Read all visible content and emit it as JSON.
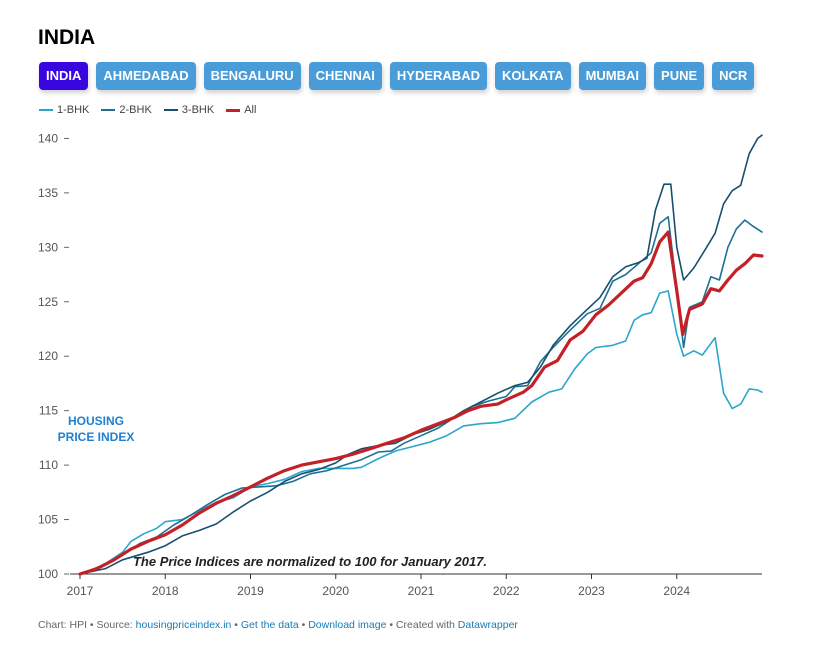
{
  "title": "INDIA",
  "tabs": [
    {
      "label": "INDIA",
      "active": true
    },
    {
      "label": "AHMEDABAD",
      "active": false
    },
    {
      "label": "BENGALURU",
      "active": false
    },
    {
      "label": "CHENNAI",
      "active": false
    },
    {
      "label": "HYDERABAD",
      "active": false
    },
    {
      "label": "KOLKATA",
      "active": false
    },
    {
      "label": "MUMBAI",
      "active": false
    },
    {
      "label": "PUNE",
      "active": false
    },
    {
      "label": "NCR",
      "active": false
    }
  ],
  "colors": {
    "1-BHK": "#2ba6cc",
    "2-BHK": "#1c7193",
    "3-BHK": "#17506e",
    "All": "#c32127",
    "tab_bg": "#4a9cd9",
    "tab_active": "#3a06e0",
    "watermark": "#1f7fd1"
  },
  "watermark": [
    "HOUSING",
    "PRICE INDEX"
  ],
  "chart_data": {
    "type": "line",
    "x_ticks": [
      "2017",
      "2018",
      "2019",
      "2020",
      "2021",
      "2022",
      "2023",
      "2024"
    ],
    "y_ticks": [
      100,
      105,
      110,
      115,
      120,
      125,
      130,
      135,
      140
    ],
    "ylim": [
      100,
      140.5
    ],
    "xlim": [
      2017,
      2025
    ],
    "annotation": "The Price Indices are normalized to 100 for January 2017.",
    "series": [
      {
        "name": "1-BHK",
        "points": [
          [
            2017.0,
            100
          ],
          [
            2017.25,
            100.7
          ],
          [
            2017.5,
            102.0
          ],
          [
            2017.6,
            103.0
          ],
          [
            2017.75,
            103.7
          ],
          [
            2017.9,
            104.2
          ],
          [
            2018.0,
            104.8
          ],
          [
            2018.2,
            105.0
          ],
          [
            2018.4,
            105.8
          ],
          [
            2018.6,
            106.6
          ],
          [
            2018.8,
            107.0
          ],
          [
            2019.0,
            108.0
          ],
          [
            2019.2,
            108.3
          ],
          [
            2019.4,
            108.7
          ],
          [
            2019.6,
            109.4
          ],
          [
            2019.8,
            109.7
          ],
          [
            2020.0,
            109.7
          ],
          [
            2020.2,
            109.7
          ],
          [
            2020.3,
            109.8
          ],
          [
            2020.5,
            110.6
          ],
          [
            2020.7,
            111.3
          ],
          [
            2020.9,
            111.7
          ],
          [
            2021.1,
            112.1
          ],
          [
            2021.3,
            112.7
          ],
          [
            2021.5,
            113.6
          ],
          [
            2021.7,
            113.8
          ],
          [
            2021.9,
            113.9
          ],
          [
            2022.1,
            114.3
          ],
          [
            2022.3,
            115.8
          ],
          [
            2022.5,
            116.7
          ],
          [
            2022.65,
            117.0
          ],
          [
            2022.8,
            118.8
          ],
          [
            2022.95,
            120.2
          ],
          [
            2023.05,
            120.8
          ],
          [
            2023.25,
            121.0
          ],
          [
            2023.4,
            121.4
          ],
          [
            2023.5,
            123.3
          ],
          [
            2023.6,
            123.8
          ],
          [
            2023.7,
            124.0
          ],
          [
            2023.8,
            125.8
          ],
          [
            2023.9,
            126.0
          ],
          [
            2024.0,
            122.0
          ],
          [
            2024.08,
            120.0
          ],
          [
            2024.2,
            120.5
          ],
          [
            2024.3,
            120.1
          ],
          [
            2024.45,
            121.7
          ],
          [
            2024.55,
            116.6
          ],
          [
            2024.65,
            115.2
          ],
          [
            2024.75,
            115.6
          ],
          [
            2024.85,
            117.0
          ],
          [
            2024.95,
            116.9
          ],
          [
            2025.0,
            116.7
          ]
        ]
      },
      {
        "name": "2-BHK",
        "points": [
          [
            2017.0,
            100
          ],
          [
            2017.2,
            100.6
          ],
          [
            2017.45,
            101.5
          ],
          [
            2017.7,
            102.8
          ],
          [
            2017.9,
            103.4
          ],
          [
            2018.1,
            104.5
          ],
          [
            2018.3,
            105.4
          ],
          [
            2018.5,
            106.4
          ],
          [
            2018.7,
            107.3
          ],
          [
            2018.9,
            107.9
          ],
          [
            2019.1,
            108.0
          ],
          [
            2019.3,
            108.1
          ],
          [
            2019.5,
            108.5
          ],
          [
            2019.7,
            109.2
          ],
          [
            2019.9,
            109.5
          ],
          [
            2020.1,
            110.0
          ],
          [
            2020.3,
            110.5
          ],
          [
            2020.5,
            111.2
          ],
          [
            2020.65,
            111.3
          ],
          [
            2020.8,
            112.0
          ],
          [
            2021.0,
            112.7
          ],
          [
            2021.2,
            113.4
          ],
          [
            2021.4,
            114.4
          ],
          [
            2021.6,
            115.4
          ],
          [
            2021.8,
            115.9
          ],
          [
            2022.0,
            116.3
          ],
          [
            2022.1,
            117.2
          ],
          [
            2022.25,
            117.3
          ],
          [
            2022.4,
            119.5
          ],
          [
            2022.55,
            120.8
          ],
          [
            2022.75,
            122.4
          ],
          [
            2022.95,
            123.9
          ],
          [
            2023.1,
            124.4
          ],
          [
            2023.25,
            126.9
          ],
          [
            2023.4,
            127.5
          ],
          [
            2023.55,
            128.5
          ],
          [
            2023.7,
            129.5
          ],
          [
            2023.8,
            132.2
          ],
          [
            2023.9,
            132.8
          ],
          [
            2024.0,
            126.2
          ],
          [
            2024.08,
            120.8
          ],
          [
            2024.15,
            124.5
          ],
          [
            2024.3,
            125.0
          ],
          [
            2024.4,
            127.3
          ],
          [
            2024.5,
            127.0
          ],
          [
            2024.6,
            130.0
          ],
          [
            2024.7,
            131.7
          ],
          [
            2024.8,
            132.5
          ],
          [
            2024.9,
            131.9
          ],
          [
            2025.0,
            131.4
          ]
        ]
      },
      {
        "name": "3-BHK",
        "points": [
          [
            2017.0,
            100
          ],
          [
            2017.3,
            100.5
          ],
          [
            2017.5,
            101.3
          ],
          [
            2017.8,
            102.0
          ],
          [
            2018.0,
            102.6
          ],
          [
            2018.2,
            103.5
          ],
          [
            2018.4,
            104.0
          ],
          [
            2018.6,
            104.6
          ],
          [
            2018.8,
            105.7
          ],
          [
            2019.0,
            106.7
          ],
          [
            2019.2,
            107.5
          ],
          [
            2019.4,
            108.5
          ],
          [
            2019.6,
            109.2
          ],
          [
            2019.8,
            109.6
          ],
          [
            2020.0,
            110.2
          ],
          [
            2020.15,
            111.0
          ],
          [
            2020.3,
            111.5
          ],
          [
            2020.5,
            111.8
          ],
          [
            2020.7,
            112.0
          ],
          [
            2020.9,
            112.8
          ],
          [
            2021.1,
            113.3
          ],
          [
            2021.3,
            114.0
          ],
          [
            2021.5,
            115.0
          ],
          [
            2021.7,
            115.8
          ],
          [
            2021.9,
            116.6
          ],
          [
            2022.1,
            117.3
          ],
          [
            2022.25,
            117.6
          ],
          [
            2022.4,
            119.0
          ],
          [
            2022.55,
            121.0
          ],
          [
            2022.75,
            122.8
          ],
          [
            2022.95,
            124.3
          ],
          [
            2023.1,
            125.4
          ],
          [
            2023.25,
            127.3
          ],
          [
            2023.4,
            128.2
          ],
          [
            2023.55,
            128.6
          ],
          [
            2023.65,
            129.0
          ],
          [
            2023.75,
            133.4
          ],
          [
            2023.85,
            135.8
          ],
          [
            2023.93,
            135.8
          ],
          [
            2024.0,
            130.0
          ],
          [
            2024.08,
            127.0
          ],
          [
            2024.2,
            128.1
          ],
          [
            2024.35,
            130.0
          ],
          [
            2024.45,
            131.3
          ],
          [
            2024.55,
            134.0
          ],
          [
            2024.65,
            135.2
          ],
          [
            2024.75,
            135.7
          ],
          [
            2024.85,
            138.6
          ],
          [
            2024.95,
            140.0
          ],
          [
            2025.0,
            140.3
          ]
        ]
      },
      {
        "name": "All",
        "points": [
          [
            2017.0,
            100
          ],
          [
            2017.2,
            100.5
          ],
          [
            2017.4,
            101.3
          ],
          [
            2017.6,
            102.3
          ],
          [
            2017.8,
            103.0
          ],
          [
            2018.0,
            103.6
          ],
          [
            2018.2,
            104.5
          ],
          [
            2018.4,
            105.6
          ],
          [
            2018.6,
            106.5
          ],
          [
            2018.8,
            107.2
          ],
          [
            2019.0,
            108.0
          ],
          [
            2019.2,
            108.8
          ],
          [
            2019.4,
            109.5
          ],
          [
            2019.6,
            110.0
          ],
          [
            2019.8,
            110.3
          ],
          [
            2020.0,
            110.6
          ],
          [
            2020.2,
            111.0
          ],
          [
            2020.4,
            111.5
          ],
          [
            2020.6,
            112.0
          ],
          [
            2020.8,
            112.5
          ],
          [
            2021.0,
            113.2
          ],
          [
            2021.2,
            113.8
          ],
          [
            2021.4,
            114.4
          ],
          [
            2021.55,
            115.0
          ],
          [
            2021.7,
            115.4
          ],
          [
            2021.9,
            115.6
          ],
          [
            2022.0,
            116.0
          ],
          [
            2022.2,
            116.7
          ],
          [
            2022.3,
            117.3
          ],
          [
            2022.45,
            119.0
          ],
          [
            2022.6,
            119.6
          ],
          [
            2022.75,
            121.5
          ],
          [
            2022.9,
            122.3
          ],
          [
            2023.05,
            123.8
          ],
          [
            2023.2,
            124.7
          ],
          [
            2023.35,
            125.8
          ],
          [
            2023.5,
            126.9
          ],
          [
            2023.6,
            127.2
          ],
          [
            2023.7,
            128.5
          ],
          [
            2023.8,
            130.5
          ],
          [
            2023.9,
            131.4
          ],
          [
            2024.0,
            126.0
          ],
          [
            2024.07,
            122.0
          ],
          [
            2024.15,
            124.3
          ],
          [
            2024.3,
            124.8
          ],
          [
            2024.4,
            126.2
          ],
          [
            2024.5,
            126.0
          ],
          [
            2024.6,
            127.0
          ],
          [
            2024.7,
            127.9
          ],
          [
            2024.8,
            128.5
          ],
          [
            2024.9,
            129.3
          ],
          [
            2025.0,
            129.2
          ]
        ]
      }
    ]
  },
  "footer": {
    "prefix": "Chart: HPI • Source: ",
    "source": "housingpriceindex.in",
    "sep1": " • ",
    "get_data": "Get the data",
    "sep2": " • ",
    "download": "Download image",
    "sep3": " • Created with ",
    "tool": "Datawrapper"
  }
}
